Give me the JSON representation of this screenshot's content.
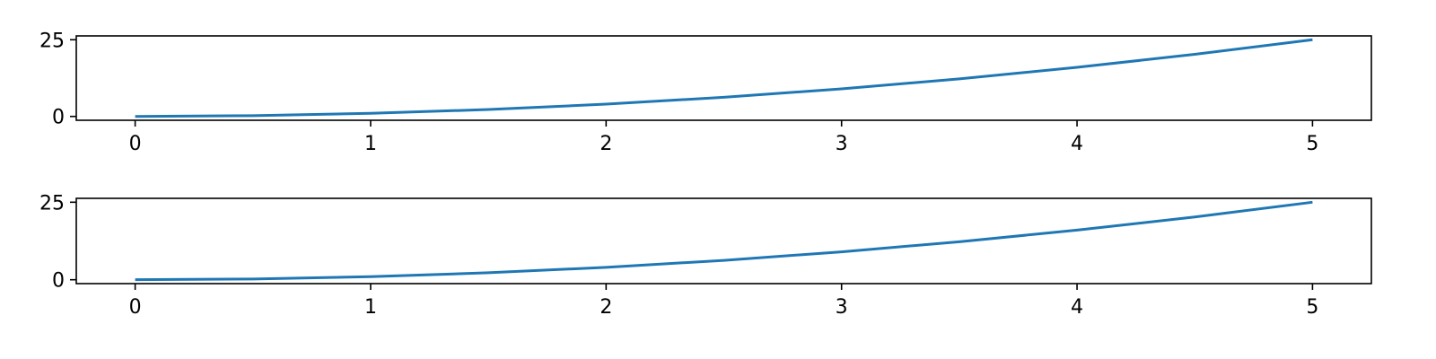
{
  "chart_data": [
    {
      "type": "line",
      "title": "",
      "xlabel": "",
      "ylabel": "",
      "xlim": [
        -0.25,
        5.25
      ],
      "ylim": [
        -1.25,
        26.25
      ],
      "xticks": [
        0,
        1,
        2,
        3,
        4,
        5
      ],
      "xtick_labels": [
        "0",
        "1",
        "2",
        "3",
        "4",
        "5"
      ],
      "yticks": [
        0,
        25
      ],
      "ytick_labels": [
        "0",
        "25"
      ],
      "grid": false,
      "series": [
        {
          "color": "#1f77b4",
          "x": [
            0,
            0.5,
            1,
            1.5,
            2,
            2.5,
            3,
            3.5,
            4,
            4.5,
            5
          ],
          "y": [
            0,
            0.25,
            1,
            2.25,
            4,
            6.25,
            9,
            12.25,
            16,
            20.25,
            25
          ]
        }
      ]
    },
    {
      "type": "line",
      "title": "",
      "xlabel": "",
      "ylabel": "",
      "xlim": [
        -0.25,
        5.25
      ],
      "ylim": [
        -1.25,
        26.25
      ],
      "xticks": [
        0,
        1,
        2,
        3,
        4,
        5
      ],
      "xtick_labels": [
        "0",
        "1",
        "2",
        "3",
        "4",
        "5"
      ],
      "yticks": [
        0,
        25
      ],
      "ytick_labels": [
        "0",
        "25"
      ],
      "grid": false,
      "series": [
        {
          "color": "#1f77b4",
          "x": [
            0,
            0.5,
            1,
            1.5,
            2,
            2.5,
            3,
            3.5,
            4,
            4.5,
            5
          ],
          "y": [
            0,
            0.25,
            1,
            2.25,
            4,
            6.25,
            9,
            12.25,
            16,
            20.25,
            25
          ]
        }
      ]
    }
  ]
}
